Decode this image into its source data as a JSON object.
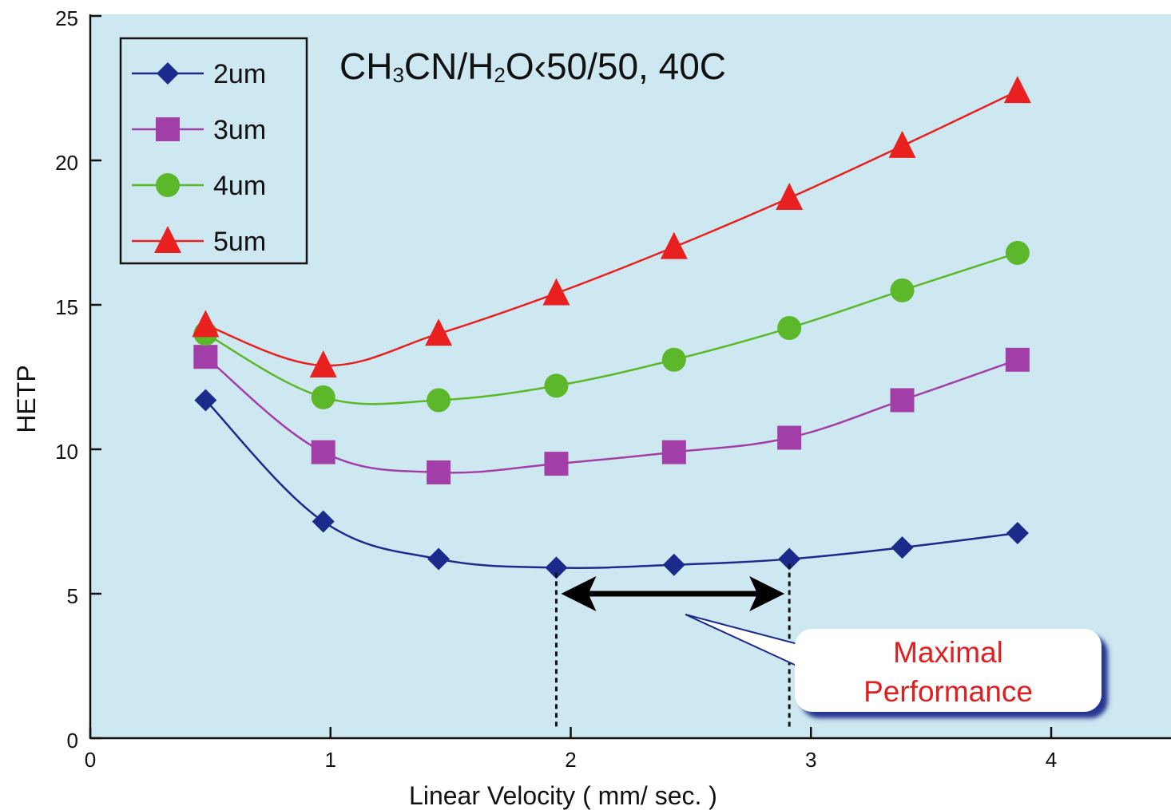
{
  "chart_data": {
    "type": "line",
    "title": "",
    "xlabel": "Linear Velocity ( mm/ sec. )",
    "ylabel": "HETP",
    "xlim": [
      0,
      4.5
    ],
    "ylim": [
      0,
      25
    ],
    "x_ticks": [
      0,
      1,
      2,
      3,
      4
    ],
    "y_ticks": [
      0,
      5,
      10,
      15,
      20,
      25
    ],
    "grid": false,
    "legend_position": "top-left",
    "background_color": "#cde8f0",
    "series": [
      {
        "name": "2um",
        "marker": "diamond",
        "color": "#1c2a8c",
        "x": [
          0.48,
          0.97,
          1.45,
          1.94,
          2.43,
          2.91,
          3.38,
          3.86
        ],
        "y": [
          11.7,
          7.5,
          6.2,
          5.9,
          6.0,
          6.2,
          6.6,
          7.1
        ]
      },
      {
        "name": "3um",
        "marker": "square",
        "color": "#a23ea8",
        "x": [
          0.48,
          0.97,
          1.45,
          1.94,
          2.43,
          2.91,
          3.38,
          3.86
        ],
        "y": [
          13.2,
          9.9,
          9.2,
          9.5,
          9.9,
          10.4,
          11.7,
          13.1
        ]
      },
      {
        "name": "4um",
        "marker": "circle",
        "color": "#5cb82a",
        "x": [
          0.48,
          0.97,
          1.45,
          1.94,
          2.43,
          2.91,
          3.38,
          3.86
        ],
        "y": [
          14.0,
          11.8,
          11.7,
          12.2,
          13.1,
          14.2,
          15.5,
          16.8
        ]
      },
      {
        "name": "5um",
        "marker": "triangle",
        "color": "#e82020",
        "x": [
          0.48,
          0.97,
          1.45,
          1.94,
          2.43,
          2.91,
          3.38,
          3.86
        ],
        "y": [
          14.3,
          12.9,
          14.0,
          15.4,
          17.0,
          18.7,
          20.5,
          22.4
        ]
      }
    ],
    "annotations": {
      "condition": {
        "pre1": "CH",
        "sub1": "3",
        "mid1": "CN/H",
        "sub2": "2",
        "post": "O‹50/50, 40C"
      },
      "range_arrow": {
        "x_start": 1.94,
        "x_end": 2.91,
        "y": 5
      },
      "callout": {
        "line1": "Maximal",
        "line2": "Performance",
        "color": "#e02020",
        "border_color": "#1c2a8c"
      }
    }
  }
}
